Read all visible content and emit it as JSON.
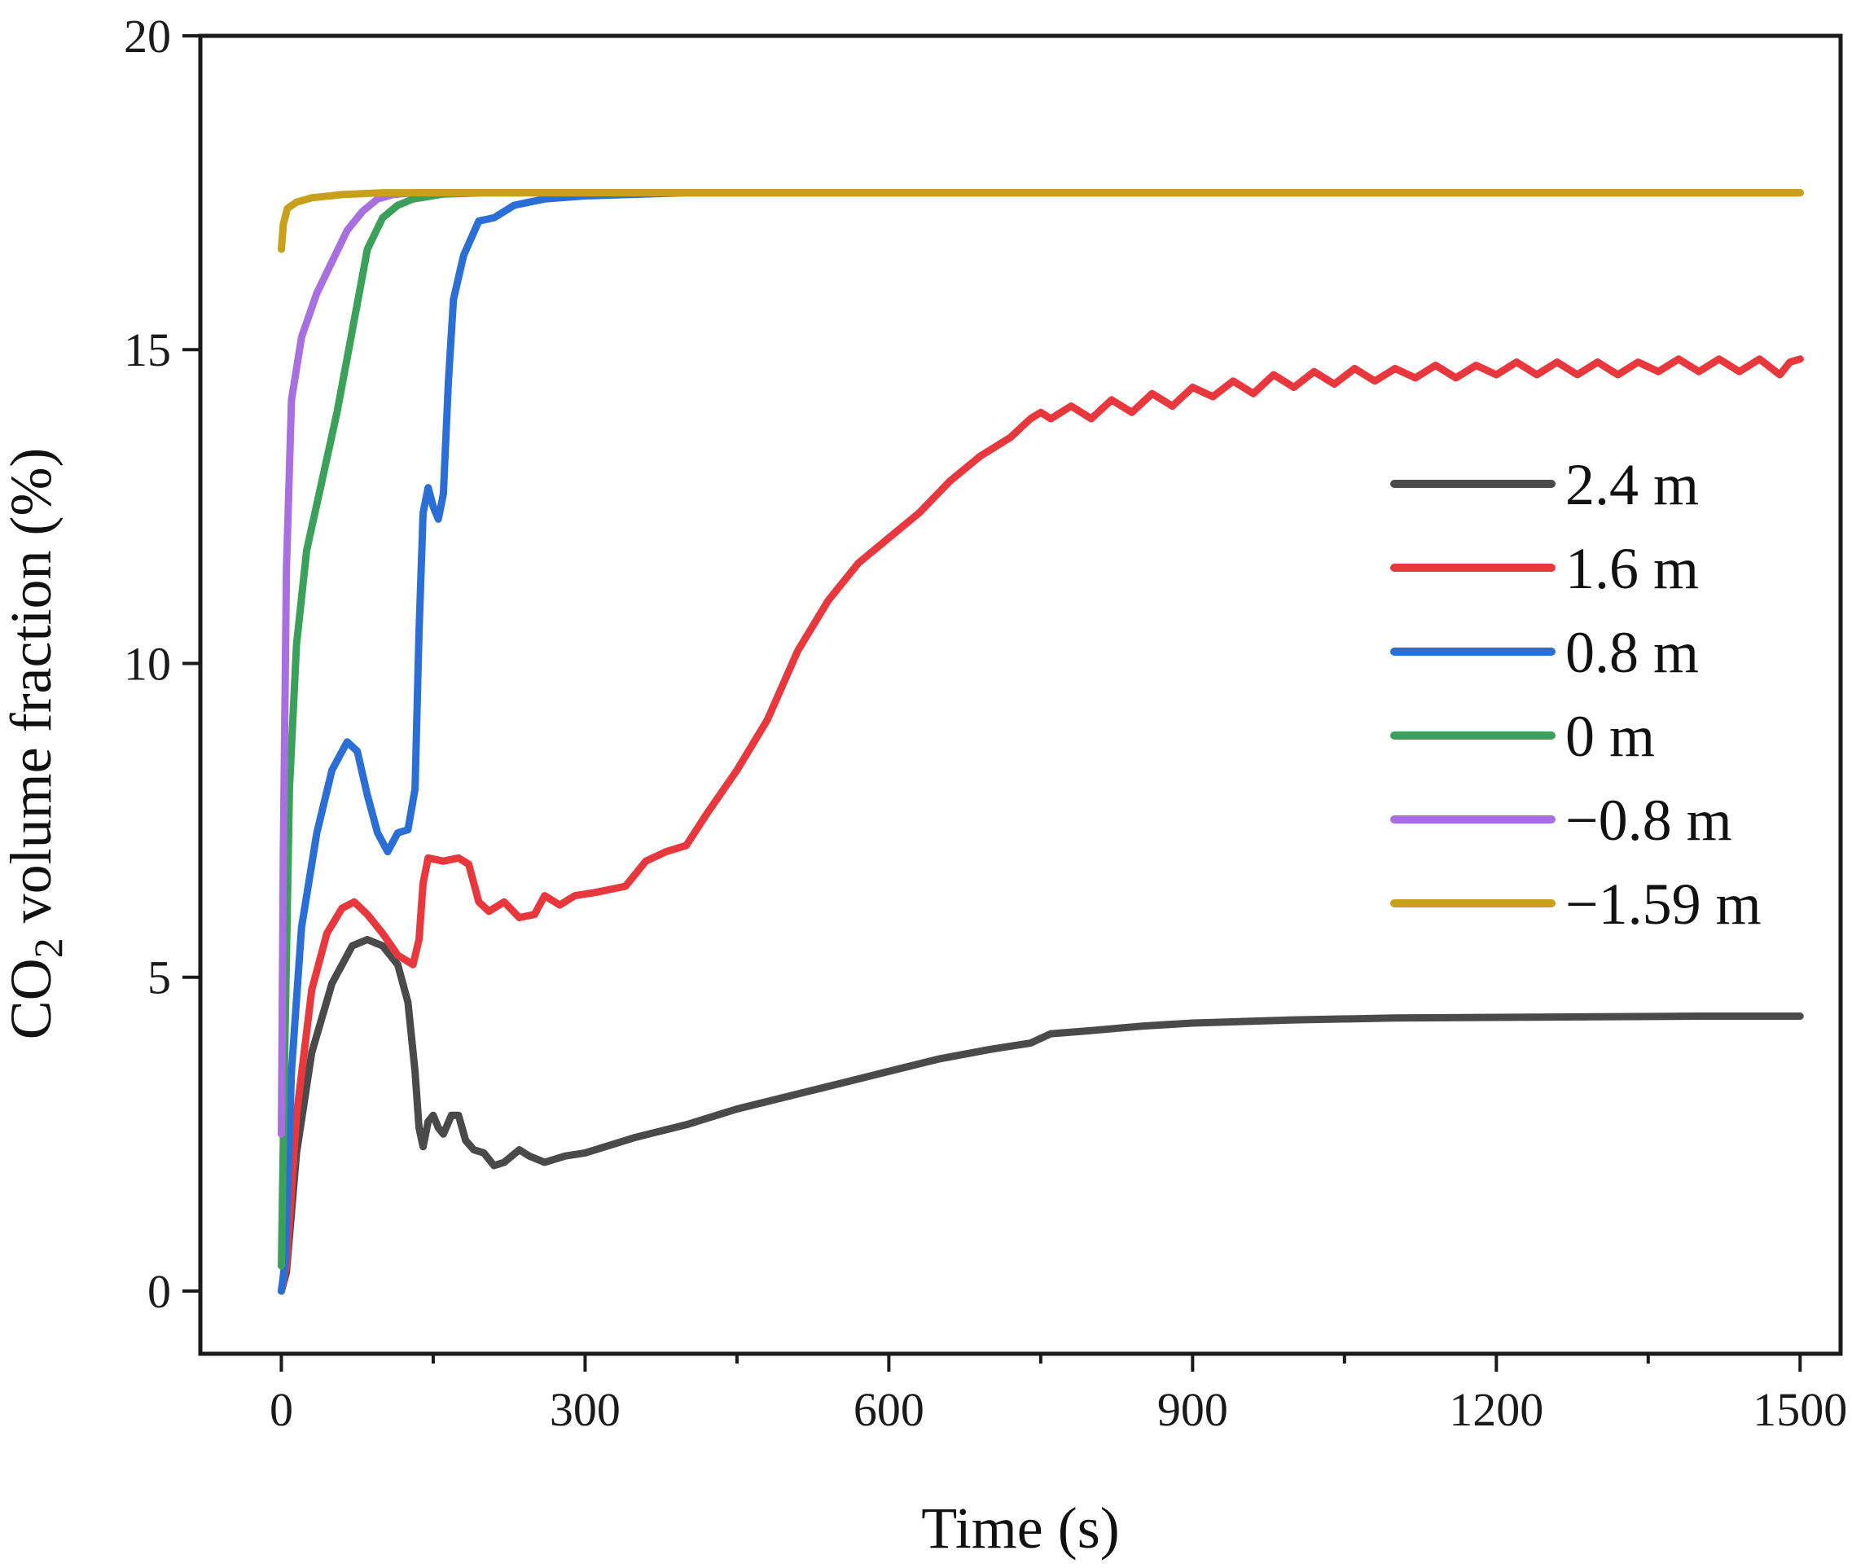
{
  "chart_data": {
    "type": "line",
    "title": "",
    "xlabel": "Time (s)",
    "ylabel_prefix": "CO",
    "ylabel_subscript": "2",
    "ylabel_suffix": " volume fraction (%)",
    "xlim": [
      -80,
      1540
    ],
    "ylim": [
      -1,
      20
    ],
    "xticks": [
      0,
      300,
      600,
      900,
      1200,
      1500
    ],
    "xtick_labels": [
      "0",
      "300",
      "600",
      "900",
      "1200",
      "1500"
    ],
    "yticks": [
      0,
      5,
      10,
      15,
      20
    ],
    "ytick_labels": [
      "0",
      "5",
      "10",
      "15",
      "20"
    ],
    "x_minor_ticks": [
      150,
      450,
      750,
      1050,
      1350
    ],
    "legend_position": "right-middle",
    "series": [
      {
        "name": "2.4 m",
        "color": "#4a4a4a",
        "points": [
          [
            0,
            0
          ],
          [
            5,
            0.3
          ],
          [
            15,
            2.2
          ],
          [
            30,
            3.8
          ],
          [
            50,
            4.9
          ],
          [
            70,
            5.5
          ],
          [
            85,
            5.6
          ],
          [
            100,
            5.5
          ],
          [
            115,
            5.2
          ],
          [
            125,
            4.6
          ],
          [
            132,
            3.5
          ],
          [
            136,
            2.6
          ],
          [
            140,
            2.3
          ],
          [
            145,
            2.7
          ],
          [
            150,
            2.8
          ],
          [
            155,
            2.6
          ],
          [
            160,
            2.5
          ],
          [
            168,
            2.8
          ],
          [
            175,
            2.8
          ],
          [
            182,
            2.4
          ],
          [
            190,
            2.25
          ],
          [
            200,
            2.2
          ],
          [
            210,
            2.0
          ],
          [
            220,
            2.05
          ],
          [
            235,
            2.25
          ],
          [
            245,
            2.15
          ],
          [
            260,
            2.05
          ],
          [
            280,
            2.15
          ],
          [
            300,
            2.2
          ],
          [
            350,
            2.45
          ],
          [
            400,
            2.65
          ],
          [
            450,
            2.9
          ],
          [
            500,
            3.1
          ],
          [
            550,
            3.3
          ],
          [
            600,
            3.5
          ],
          [
            650,
            3.7
          ],
          [
            700,
            3.85
          ],
          [
            740,
            3.95
          ],
          [
            760,
            4.1
          ],
          [
            800,
            4.15
          ],
          [
            850,
            4.22
          ],
          [
            900,
            4.27
          ],
          [
            1000,
            4.32
          ],
          [
            1100,
            4.35
          ],
          [
            1200,
            4.36
          ],
          [
            1300,
            4.37
          ],
          [
            1400,
            4.38
          ],
          [
            1500,
            4.38
          ]
        ]
      },
      {
        "name": "1.6 m",
        "color": "#e8383d",
        "points": [
          [
            0,
            0
          ],
          [
            5,
            0.4
          ],
          [
            15,
            2.8
          ],
          [
            30,
            4.8
          ],
          [
            45,
            5.7
          ],
          [
            60,
            6.1
          ],
          [
            72,
            6.2
          ],
          [
            85,
            6.0
          ],
          [
            100,
            5.7
          ],
          [
            115,
            5.35
          ],
          [
            130,
            5.2
          ],
          [
            136,
            5.6
          ],
          [
            140,
            6.5
          ],
          [
            145,
            6.9
          ],
          [
            160,
            6.85
          ],
          [
            175,
            6.9
          ],
          [
            185,
            6.8
          ],
          [
            195,
            6.2
          ],
          [
            205,
            6.05
          ],
          [
            220,
            6.2
          ],
          [
            235,
            5.95
          ],
          [
            250,
            6.0
          ],
          [
            260,
            6.3
          ],
          [
            275,
            6.15
          ],
          [
            290,
            6.3
          ],
          [
            310,
            6.35
          ],
          [
            340,
            6.45
          ],
          [
            360,
            6.85
          ],
          [
            380,
            7.0
          ],
          [
            400,
            7.1
          ],
          [
            420,
            7.6
          ],
          [
            450,
            8.3
          ],
          [
            480,
            9.1
          ],
          [
            510,
            10.2
          ],
          [
            540,
            11.0
          ],
          [
            570,
            11.6
          ],
          [
            600,
            12.0
          ],
          [
            630,
            12.4
          ],
          [
            660,
            12.9
          ],
          [
            690,
            13.3
          ],
          [
            720,
            13.6
          ],
          [
            740,
            13.9
          ],
          [
            750,
            14.0
          ],
          [
            760,
            13.9
          ],
          [
            780,
            14.1
          ],
          [
            800,
            13.9
          ],
          [
            820,
            14.2
          ],
          [
            840,
            14.0
          ],
          [
            860,
            14.3
          ],
          [
            880,
            14.1
          ],
          [
            900,
            14.4
          ],
          [
            920,
            14.25
          ],
          [
            940,
            14.5
          ],
          [
            960,
            14.3
          ],
          [
            980,
            14.6
          ],
          [
            1000,
            14.4
          ],
          [
            1020,
            14.65
          ],
          [
            1040,
            14.45
          ],
          [
            1060,
            14.7
          ],
          [
            1080,
            14.5
          ],
          [
            1100,
            14.7
          ],
          [
            1120,
            14.55
          ],
          [
            1140,
            14.75
          ],
          [
            1160,
            14.55
          ],
          [
            1180,
            14.75
          ],
          [
            1200,
            14.6
          ],
          [
            1220,
            14.8
          ],
          [
            1240,
            14.6
          ],
          [
            1260,
            14.8
          ],
          [
            1280,
            14.6
          ],
          [
            1300,
            14.8
          ],
          [
            1320,
            14.6
          ],
          [
            1340,
            14.8
          ],
          [
            1360,
            14.65
          ],
          [
            1380,
            14.85
          ],
          [
            1400,
            14.65
          ],
          [
            1420,
            14.85
          ],
          [
            1440,
            14.65
          ],
          [
            1460,
            14.85
          ],
          [
            1480,
            14.6
          ],
          [
            1490,
            14.8
          ],
          [
            1500,
            14.85
          ]
        ]
      },
      {
        "name": "0.8 m",
        "color": "#2b6fd6",
        "points": [
          [
            0,
            0
          ],
          [
            4,
            0.5
          ],
          [
            10,
            3.5
          ],
          [
            20,
            5.8
          ],
          [
            35,
            7.3
          ],
          [
            50,
            8.3
          ],
          [
            65,
            8.75
          ],
          [
            75,
            8.6
          ],
          [
            85,
            7.9
          ],
          [
            95,
            7.3
          ],
          [
            105,
            7.0
          ],
          [
            115,
            7.3
          ],
          [
            125,
            7.35
          ],
          [
            132,
            8.0
          ],
          [
            136,
            10.5
          ],
          [
            140,
            12.4
          ],
          [
            145,
            12.8
          ],
          [
            150,
            12.5
          ],
          [
            155,
            12.3
          ],
          [
            160,
            12.7
          ],
          [
            165,
            14.5
          ],
          [
            170,
            15.8
          ],
          [
            180,
            16.5
          ],
          [
            195,
            17.05
          ],
          [
            210,
            17.1
          ],
          [
            230,
            17.3
          ],
          [
            260,
            17.4
          ],
          [
            300,
            17.45
          ],
          [
            400,
            17.5
          ],
          [
            600,
            17.5
          ],
          [
            1500,
            17.5
          ]
        ]
      },
      {
        "name": "0 m",
        "color": "#3aa05a",
        "points": [
          [
            0,
            0.4
          ],
          [
            3,
            3.5
          ],
          [
            8,
            8.0
          ],
          [
            15,
            10.3
          ],
          [
            25,
            11.8
          ],
          [
            40,
            12.9
          ],
          [
            55,
            14.0
          ],
          [
            70,
            15.3
          ],
          [
            85,
            16.6
          ],
          [
            100,
            17.1
          ],
          [
            115,
            17.3
          ],
          [
            130,
            17.4
          ],
          [
            160,
            17.48
          ],
          [
            200,
            17.5
          ],
          [
            300,
            17.5
          ],
          [
            1500,
            17.5
          ]
        ]
      },
      {
        "name": "−0.8 m",
        "color": "#a86fe0",
        "points": [
          [
            0,
            2.5
          ],
          [
            2,
            7.0
          ],
          [
            5,
            11.5
          ],
          [
            10,
            14.2
          ],
          [
            20,
            15.2
          ],
          [
            35,
            15.9
          ],
          [
            50,
            16.4
          ],
          [
            65,
            16.9
          ],
          [
            80,
            17.2
          ],
          [
            95,
            17.4
          ],
          [
            110,
            17.47
          ],
          [
            130,
            17.5
          ],
          [
            200,
            17.5
          ],
          [
            1500,
            17.5
          ]
        ]
      },
      {
        "name": "−1.59 m",
        "color": "#c9a01c",
        "points": [
          [
            0,
            16.6
          ],
          [
            2,
            17.0
          ],
          [
            6,
            17.25
          ],
          [
            15,
            17.35
          ],
          [
            30,
            17.42
          ],
          [
            60,
            17.47
          ],
          [
            100,
            17.5
          ],
          [
            300,
            17.5
          ],
          [
            1500,
            17.5
          ]
        ]
      }
    ]
  }
}
